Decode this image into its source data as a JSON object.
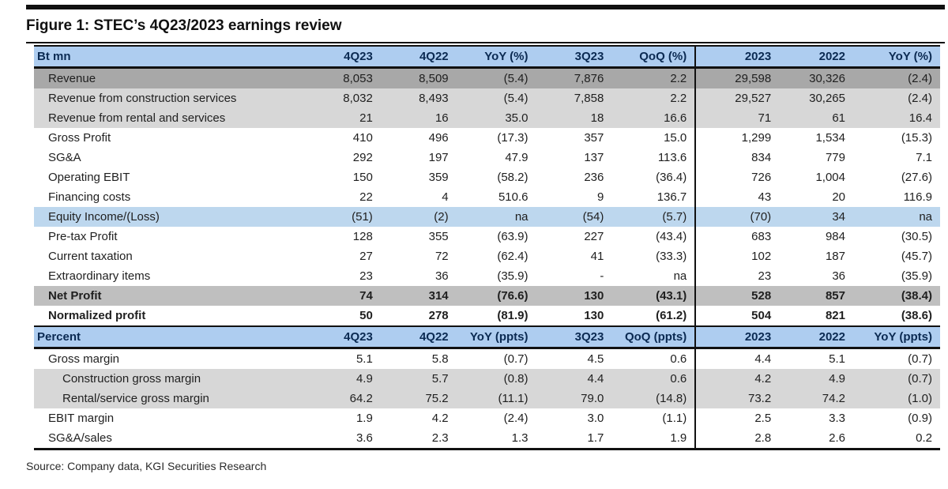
{
  "page": {
    "title": "Figure 1: STEC’s 4Q23/2023 earnings review",
    "source": "Source: Company data, KGI Securities Research"
  },
  "colors": {
    "header_bg": "#aecdf0",
    "header_text": "#0b2a52",
    "row_dark_gray": "#a8a8a8",
    "row_light_gray": "#d7d7d7",
    "row_blue": "#bdd7ee",
    "row_net_profit_gray": "#bfbfbf",
    "rule_black": "#111111"
  },
  "table_btmn": {
    "headers": [
      "Bt mn",
      "4Q23",
      "4Q22",
      "YoY (%)",
      "3Q23",
      "QoQ (%)",
      "2023",
      "2022",
      "YoY (%)"
    ],
    "rows": [
      {
        "label": "Revenue",
        "values": [
          "8,053",
          "8,509",
          "(5.4)",
          "7,876",
          "2.2",
          "29,598",
          "30,326",
          "(2.4)"
        ],
        "style": "dark-gray"
      },
      {
        "label": "Revenue from construction services",
        "values": [
          "8,032",
          "8,493",
          "(5.4)",
          "7,858",
          "2.2",
          "29,527",
          "30,265",
          "(2.4)"
        ],
        "style": "light-gray"
      },
      {
        "label": "Revenue from rental and services",
        "values": [
          "21",
          "16",
          "35.0",
          "18",
          "16.6",
          "71",
          "61",
          "16.4"
        ],
        "style": "light-gray"
      },
      {
        "label": "Gross Profit",
        "values": [
          "410",
          "496",
          "(17.3)",
          "357",
          "15.0",
          "1,299",
          "1,534",
          "(15.3)"
        ],
        "style": "plain"
      },
      {
        "label": "SG&A",
        "values": [
          "292",
          "197",
          "47.9",
          "137",
          "113.6",
          "834",
          "779",
          "7.1"
        ],
        "style": "plain"
      },
      {
        "label": "Operating EBIT",
        "values": [
          "150",
          "359",
          "(58.2)",
          "236",
          "(36.4)",
          "726",
          "1,004",
          "(27.6)"
        ],
        "style": "plain"
      },
      {
        "label": "Financing costs",
        "values": [
          "22",
          "4",
          "510.6",
          "9",
          "136.7",
          "43",
          "20",
          "116.9"
        ],
        "style": "plain"
      },
      {
        "label": "Equity Income/(Loss)",
        "values": [
          "(51)",
          "(2)",
          "na",
          "(54)",
          "(5.7)",
          "(70)",
          "34",
          "na"
        ],
        "style": "blue"
      },
      {
        "label": "Pre-tax Profit",
        "values": [
          "128",
          "355",
          "(63.9)",
          "227",
          "(43.4)",
          "683",
          "984",
          "(30.5)"
        ],
        "style": "plain"
      },
      {
        "label": "Current taxation",
        "values": [
          "27",
          "72",
          "(62.4)",
          "41",
          "(33.3)",
          "102",
          "187",
          "(45.7)"
        ],
        "style": "plain"
      },
      {
        "label": "Extraordinary items",
        "values": [
          "23",
          "36",
          "(35.9)",
          "-",
          "na",
          "23",
          "36",
          "(35.9)"
        ],
        "style": "plain"
      },
      {
        "label": "Net Profit",
        "values": [
          "74",
          "314",
          "(76.6)",
          "130",
          "(43.1)",
          "528",
          "857",
          "(38.4)"
        ],
        "style": "bold-gray"
      },
      {
        "label": "Normalized profit",
        "values": [
          "50",
          "278",
          "(81.9)",
          "130",
          "(61.2)",
          "504",
          "821",
          "(38.6)"
        ],
        "style": "bold"
      }
    ]
  },
  "table_percent": {
    "headers": [
      "Percent",
      "4Q23",
      "4Q22",
      "YoY (ppts)",
      "3Q23",
      "QoQ (ppts)",
      "2023",
      "2022",
      "YoY (ppts)"
    ],
    "rows": [
      {
        "label": "Gross margin",
        "values": [
          "5.1",
          "5.8",
          "(0.7)",
          "4.5",
          "0.6",
          "4.4",
          "5.1",
          "(0.7)"
        ],
        "style": "plain"
      },
      {
        "label": "Construction gross margin",
        "values": [
          "4.9",
          "5.7",
          "(0.8)",
          "4.4",
          "0.6",
          "4.2",
          "4.9",
          "(0.7)"
        ],
        "style": "light-gray indent2"
      },
      {
        "label": "Rental/service gross margin",
        "values": [
          "64.2",
          "75.2",
          "(11.1)",
          "79.0",
          "(14.8)",
          "73.2",
          "74.2",
          "(1.0)"
        ],
        "style": "light-gray indent2"
      },
      {
        "label": "EBIT margin",
        "values": [
          "1.9",
          "4.2",
          "(2.4)",
          "3.0",
          "(1.1)",
          "2.5",
          "3.3",
          "(0.9)"
        ],
        "style": "plain"
      },
      {
        "label": "SG&A/sales",
        "values": [
          "3.6",
          "2.3",
          "1.3",
          "1.7",
          "1.9",
          "2.8",
          "2.6",
          "0.2"
        ],
        "style": "plain"
      }
    ]
  }
}
